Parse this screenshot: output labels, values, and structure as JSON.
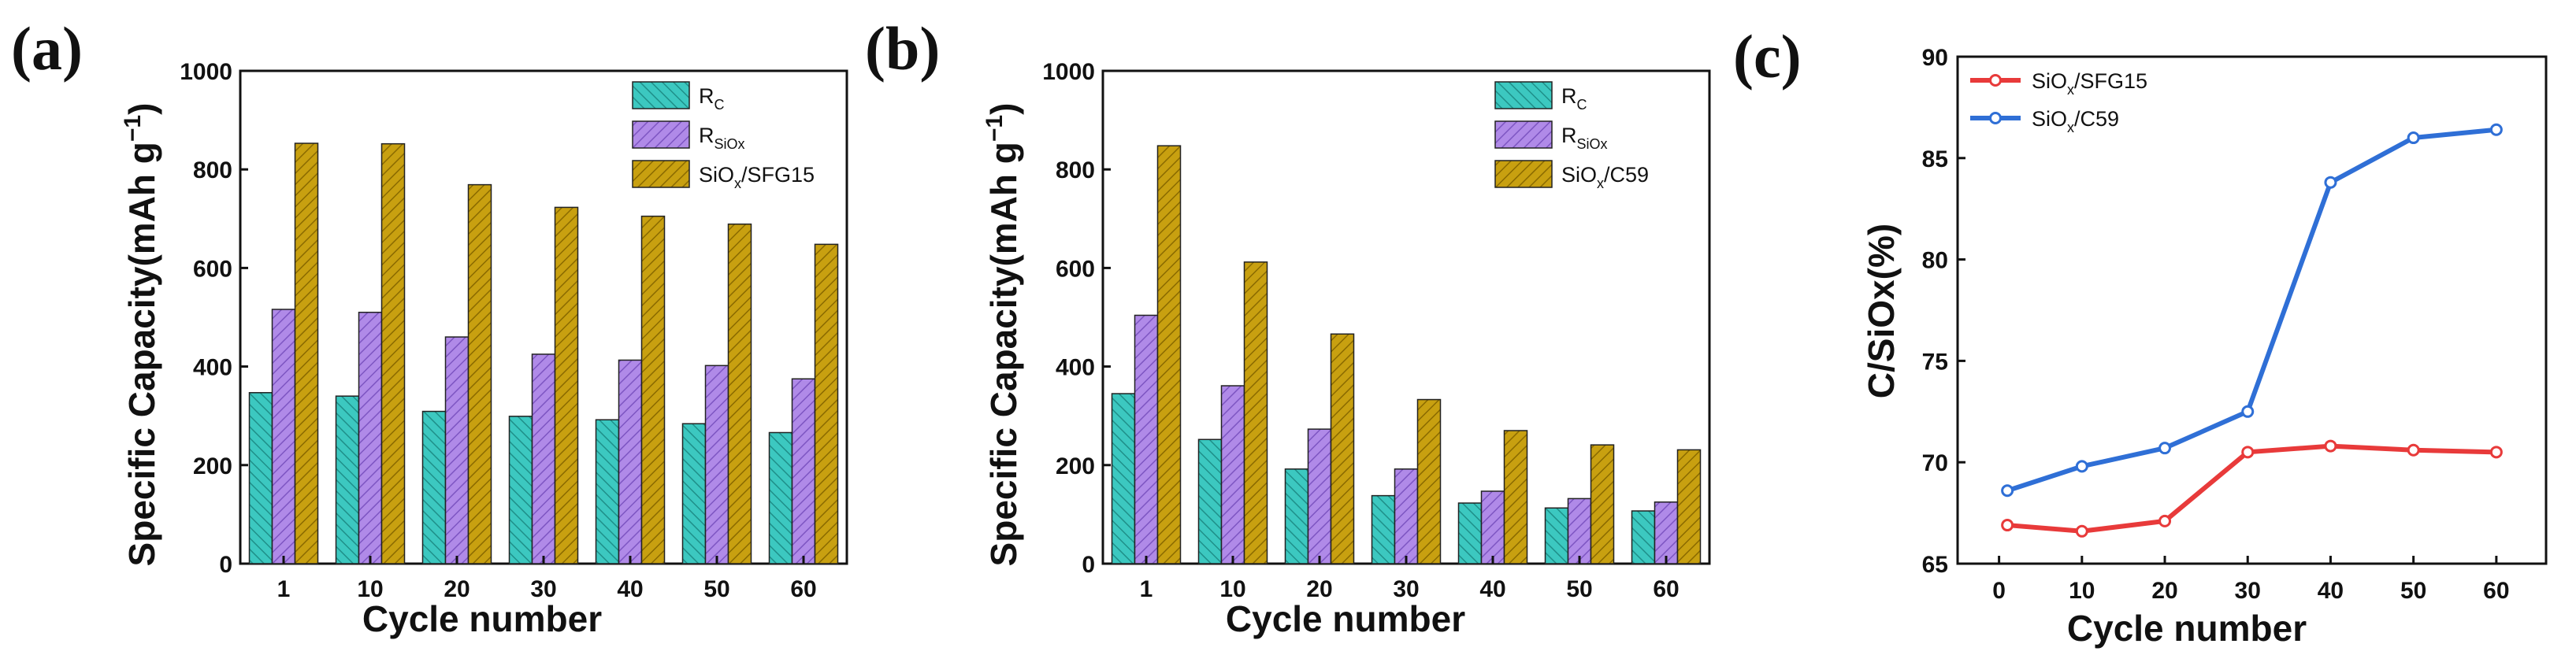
{
  "chart_data": [
    {
      "panel": "(a)",
      "type": "bar",
      "categories": [
        "1",
        "10",
        "20",
        "30",
        "40",
        "50",
        "60"
      ],
      "series": [
        {
          "name": "R",
          "sub": "C",
          "color": "#3cc8c0",
          "values": [
            347,
            340,
            309,
            299,
            292,
            284,
            266
          ]
        },
        {
          "name": "R",
          "sub": "SiOx",
          "color": "#b08ae8",
          "values": [
            516,
            510,
            460,
            425,
            413,
            402,
            375
          ]
        },
        {
          "name": "SiO",
          "sub": "x",
          "suffix": "/SFG15",
          "color": "#c8a010",
          "values": [
            853,
            852,
            769,
            723,
            705,
            689,
            648
          ]
        }
      ],
      "xlabel": "Cycle number",
      "ylabel": "Specific Capacity(mAh g",
      "ylabel_sup": "−1",
      "ylabel_end": ")",
      "ylim": [
        0,
        1000
      ],
      "yticks": [
        0,
        200,
        400,
        600,
        800,
        1000
      ],
      "legend": "top-right"
    },
    {
      "panel": "(b)",
      "type": "bar",
      "categories": [
        "1",
        "10",
        "20",
        "30",
        "40",
        "50",
        "60"
      ],
      "series": [
        {
          "name": "R",
          "sub": "C",
          "color": "#3cc8c0",
          "values": [
            345,
            252,
            192,
            138,
            123,
            113,
            107
          ]
        },
        {
          "name": "R",
          "sub": "SiOx",
          "color": "#b08ae8",
          "values": [
            504,
            361,
            273,
            192,
            147,
            132,
            125
          ]
        },
        {
          "name": "SiO",
          "sub": "x",
          "suffix": "/C59",
          "color": "#c8a010",
          "values": [
            848,
            612,
            466,
            333,
            270,
            241,
            231
          ]
        }
      ],
      "xlabel": "Cycle number",
      "ylabel": "Specific Capacity(mAh g",
      "ylabel_sup": "−1",
      "ylabel_end": ")",
      "ylim": [
        0,
        1000
      ],
      "yticks": [
        0,
        200,
        400,
        600,
        800,
        1000
      ],
      "legend": "top-right"
    },
    {
      "panel": "(c)",
      "type": "line",
      "x": [
        1,
        10,
        20,
        30,
        40,
        50,
        60
      ],
      "series": [
        {
          "name": "SiO",
          "sub": "x",
          "suffix": "/SFG15",
          "color": "#e83a3a",
          "values": [
            66.9,
            66.6,
            67.1,
            70.5,
            70.8,
            70.6,
            70.5
          ]
        },
        {
          "name": "SiO",
          "sub": "x",
          "suffix": "/C59",
          "color": "#2f6fd6",
          "values": [
            68.6,
            69.8,
            70.7,
            72.5,
            83.8,
            86.0,
            86.4
          ]
        }
      ],
      "xlabel": "Cycle number",
      "ylabel": "C/SiOx(%)",
      "xlim": [
        -5,
        66
      ],
      "ylim": [
        65,
        90
      ],
      "xticks": [
        0,
        10,
        20,
        30,
        40,
        50,
        60
      ],
      "yticks": [
        65,
        70,
        75,
        80,
        85,
        90
      ],
      "legend": "top-left"
    }
  ]
}
